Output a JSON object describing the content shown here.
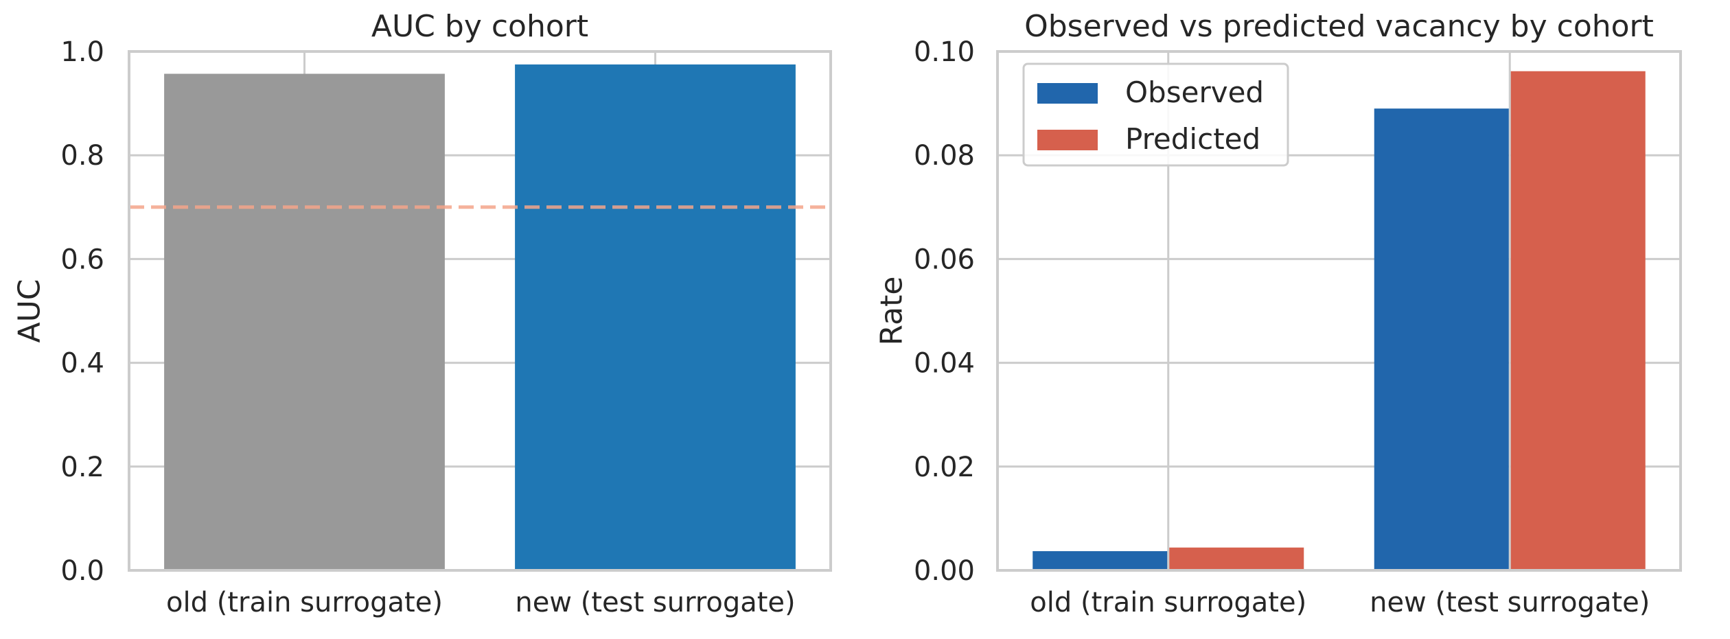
{
  "chart_data": [
    {
      "type": "bar",
      "title": "AUC by cohort",
      "xlabel": "",
      "ylabel": "AUC",
      "ylim": [
        0,
        1.0
      ],
      "yticks": [
        "0.0",
        "0.2",
        "0.4",
        "0.6",
        "0.8",
        "1.0"
      ],
      "categories": [
        "old (train surrogate)",
        "new (test surrogate)"
      ],
      "values": [
        0.957,
        0.975
      ],
      "bar_colors": [
        "#999999",
        "#1f77b4"
      ],
      "reference_line": {
        "y": 0.7,
        "style": "dashed",
        "color": "#f4a58a"
      },
      "grid": true
    },
    {
      "type": "bar",
      "title": "Observed vs predicted vacancy by cohort",
      "xlabel": "",
      "ylabel": "Rate",
      "ylim": [
        0,
        0.1
      ],
      "yticks": [
        "0.00",
        "0.02",
        "0.04",
        "0.06",
        "0.08",
        "0.10"
      ],
      "categories": [
        "old (train surrogate)",
        "new (test surrogate)"
      ],
      "series": [
        {
          "name": "Observed",
          "values": [
            0.0037,
            0.089
          ],
          "color": "#2166ac"
        },
        {
          "name": "Predicted",
          "values": [
            0.0044,
            0.0962
          ],
          "color": "#d6604d"
        }
      ],
      "legend": "top-left",
      "grid": true
    }
  ]
}
